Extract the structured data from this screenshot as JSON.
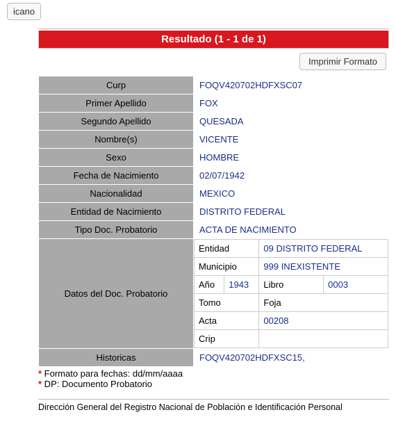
{
  "top_button_label": "icano",
  "result_header": "Resultado (1 - 1 de 1)",
  "print_button_label": "Imprimir Formato",
  "colors": {
    "header_bg": "#d8171f",
    "label_bg": "#a9a9a9",
    "value_text": "#1a2e88"
  },
  "fields": {
    "curp": {
      "label": "Curp",
      "value": "FOQV420702HDFXSC07"
    },
    "primer_apellido": {
      "label": "Primer Apellido",
      "value": "FOX"
    },
    "segundo_apellido": {
      "label": "Segundo Apellido",
      "value": "QUESADA"
    },
    "nombres": {
      "label": "Nombre(s)",
      "value": "VICENTE"
    },
    "sexo": {
      "label": "Sexo",
      "value": "HOMBRE"
    },
    "fecha_nac": {
      "label": "Fecha de Nacimiento",
      "value": "02/07/1942"
    },
    "nacionalidad": {
      "label": "Nacionalidad",
      "value": "MEXICO"
    },
    "entidad_nac": {
      "label": "Entidad de Nacimiento",
      "value": "DISTRITO FEDERAL"
    },
    "tipo_doc": {
      "label": "Tipo Doc. Probatorio",
      "value": "ACTA DE NACIMIENTO"
    },
    "datos_doc_label": "Datos del Doc. Probatorio",
    "historicas": {
      "label": "Historicas",
      "value": "FOQV420702HDFXSC15,"
    }
  },
  "doc_details": {
    "entidad": {
      "label": "Entidad",
      "value": "09 DISTRITO FEDERAL"
    },
    "municipio": {
      "label": "Municipio",
      "value": "999 INEXISTENTE"
    },
    "ano": {
      "label": "Año",
      "value": "1943"
    },
    "libro": {
      "label": "Libro",
      "value": "0003"
    },
    "tomo": {
      "label": "Tomo",
      "value": ""
    },
    "foja": {
      "label": "Foja",
      "value": ""
    },
    "acta": {
      "label": "Acta",
      "value": "00208"
    },
    "crip": {
      "label": "Crip",
      "value": ""
    }
  },
  "footnote1": " Formato para fechas: dd/mm/aaaa",
  "footnote2": " DP: Documento Probatorio",
  "footer": "Dirección General del Registro Nacional de Población e Identificación Personal"
}
